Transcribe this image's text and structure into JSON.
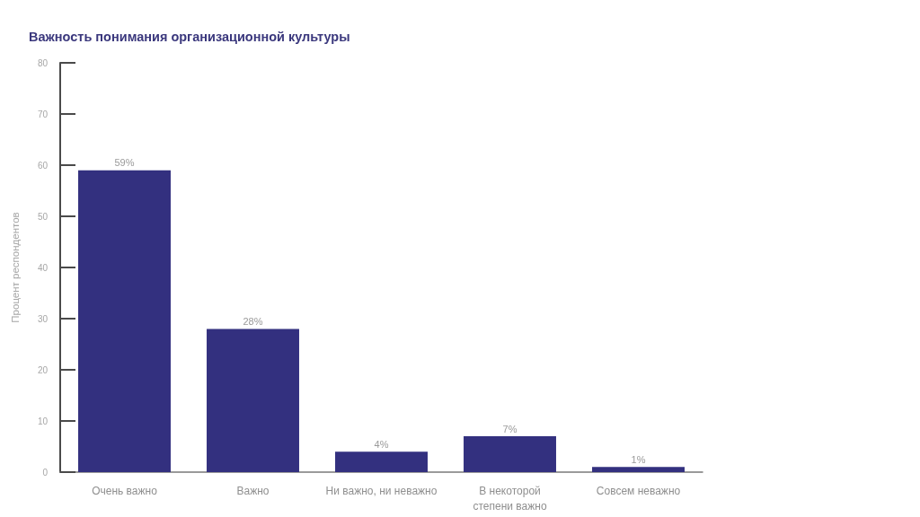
{
  "chart_data": {
    "type": "bar",
    "title": "Важность понимания организационной культуры",
    "ylabel": "Процент респондентов",
    "categories": [
      "Очень важно",
      "Важно",
      "Ни важно, ни неважно",
      "В некоторой степени важно",
      "Совсем неважно"
    ],
    "values": [
      59,
      28,
      4,
      7,
      1
    ],
    "value_labels": [
      "59%",
      "28%",
      "4%",
      "7%",
      "1%"
    ],
    "color": "#33307f",
    "ylim": [
      0,
      80
    ],
    "yticks": [
      0,
      10,
      20,
      30,
      40,
      50,
      60,
      70,
      80
    ]
  }
}
